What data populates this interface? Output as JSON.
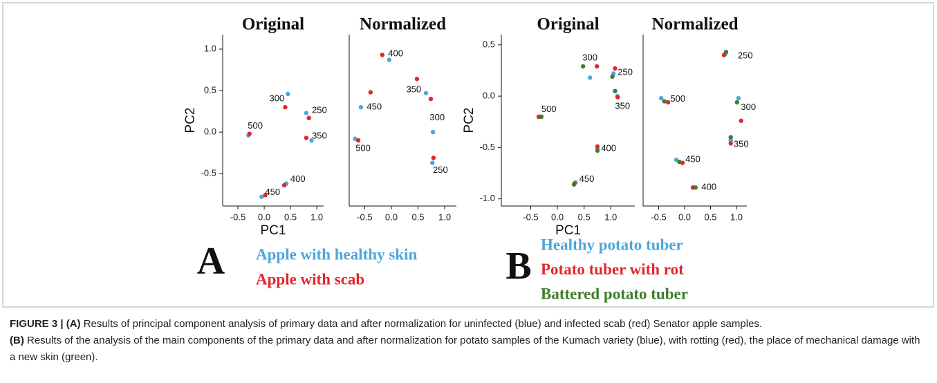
{
  "chart_data": [
    {
      "type": "scatter",
      "title": "Original",
      "xlabel": "PC1",
      "ylabel": "PC2",
      "xlim": [
        -0.79,
        1.13
      ],
      "ylim": [
        -0.89,
        1.175
      ],
      "xticks": [
        -0.5,
        {
          "value": 0,
          "label": "0.0"
        },
        0.5,
        {
          "value": 1,
          "label": "1.0"
        }
      ],
      "yticks": [
        -0.5,
        {
          "value": 0,
          "label": "0.0"
        },
        0.5,
        {
          "value": 1,
          "label": "1.0"
        }
      ],
      "series": [
        {
          "name": "Apple with healthy skin",
          "color": "#4ea6dc",
          "x": [
            0.8,
            0.45,
            0.9,
            0.42,
            -0.05,
            -0.3
          ],
          "y": [
            0.23,
            0.46,
            -0.1,
            -0.62,
            -0.78,
            -0.04
          ]
        },
        {
          "name": "Apple with scab",
          "color": "#e3262b",
          "x": [
            0.85,
            0.4,
            0.8,
            0.38,
            0.02,
            -0.28
          ],
          "y": [
            0.17,
            0.3,
            -0.07,
            -0.64,
            -0.76,
            -0.02
          ]
        }
      ],
      "annotations": [
        {
          "text": "250",
          "x": 1.05,
          "y": 0.26
        },
        {
          "text": "300",
          "x": 0.24,
          "y": 0.4
        },
        {
          "text": "350",
          "x": 1.05,
          "y": -0.05
        },
        {
          "text": "400",
          "x": 0.64,
          "y": -0.57
        },
        {
          "text": "450",
          "x": 0.16,
          "y": -0.73
        },
        {
          "text": "500",
          "x": -0.17,
          "y": 0.07
        }
      ]
    },
    {
      "type": "scatter",
      "title": "Normalized",
      "xlim": [
        -0.79,
        1.22
      ],
      "ylim": [
        -0.89,
        1.175
      ],
      "xticks": [
        -0.5,
        {
          "value": 0,
          "label": "0.0"
        },
        0.5,
        {
          "value": 1,
          "label": "1.0"
        }
      ],
      "series": [
        {
          "color": "#4ea6dc",
          "x": [
            0.77,
            0.78,
            0.65,
            -0.04,
            -0.57,
            -0.68
          ],
          "y": [
            -0.37,
            0.0,
            0.47,
            0.87,
            0.3,
            -0.08
          ]
        },
        {
          "color": "#e3262b",
          "x": [
            0.79,
            0.74,
            0.48,
            -0.17,
            -0.39,
            -0.62
          ],
          "y": [
            -0.31,
            0.4,
            0.64,
            0.93,
            0.48,
            -0.1
          ]
        }
      ],
      "annotations": [
        {
          "text": "250",
          "x": 0.92,
          "y": -0.46
        },
        {
          "text": "300",
          "x": 0.86,
          "y": 0.17
        },
        {
          "text": "350",
          "x": 0.42,
          "y": 0.51
        },
        {
          "text": "400",
          "x": 0.08,
          "y": 0.94
        },
        {
          "text": "450",
          "x": -0.32,
          "y": 0.3
        },
        {
          "text": "500",
          "x": -0.53,
          "y": -0.2
        }
      ]
    },
    {
      "type": "scatter",
      "title": "Original",
      "xlabel": "PC1",
      "ylabel": "PC2",
      "xlim": [
        -1.05,
        1.45
      ],
      "ylim": [
        -1.07,
        0.6
      ],
      "xticks": [
        -0.5,
        {
          "value": 0,
          "label": "0.0"
        },
        0.5,
        {
          "value": 1,
          "label": "1.0"
        }
      ],
      "yticks": [
        {
          "value": -1,
          "label": "-1.0"
        },
        -0.5,
        {
          "value": 0,
          "label": "0.0"
        },
        0.5
      ],
      "series": [
        {
          "name": "Healthy potato tuber",
          "color": "#4ea6dc",
          "x": [
            1.05,
            0.61,
            1.12,
            0.75,
            0.34,
            -0.33
          ],
          "y": [
            0.22,
            0.18,
            0.0,
            -0.51,
            -0.84,
            -0.2
          ]
        },
        {
          "name": "Potato tuber with rot",
          "color": "#e3262b",
          "x": [
            1.08,
            0.74,
            1.13,
            0.75,
            0.32,
            -0.35
          ],
          "y": [
            0.27,
            0.29,
            -0.01,
            -0.49,
            -0.85,
            -0.2
          ]
        },
        {
          "name": "Battered potato tuber",
          "color": "#3f7d2c",
          "x": [
            1.03,
            0.48,
            1.08,
            0.75,
            0.31,
            -0.3
          ],
          "y": [
            0.19,
            0.29,
            0.05,
            -0.53,
            -0.86,
            -0.2
          ]
        }
      ],
      "annotations": [
        {
          "text": "250",
          "x": 1.27,
          "y": 0.23
        },
        {
          "text": "300",
          "x": 0.61,
          "y": 0.37
        },
        {
          "text": "350",
          "x": 1.22,
          "y": -0.1
        },
        {
          "text": "400",
          "x": 0.96,
          "y": -0.51
        },
        {
          "text": "450",
          "x": 0.55,
          "y": -0.81
        },
        {
          "text": "500",
          "x": -0.16,
          "y": -0.13
        }
      ]
    },
    {
      "type": "scatter",
      "title": "Normalized",
      "xlim": [
        -0.8,
        1.2
      ],
      "ylim": [
        -1.07,
        0.6
      ],
      "xticks": [
        -0.5,
        {
          "value": 0,
          "label": "0.0"
        },
        0.5,
        {
          "value": 1,
          "label": "1.0"
        }
      ],
      "series": [
        {
          "color": "#4ea6dc",
          "x": [
            0.78,
            1.04,
            0.89,
            0.18,
            -0.16,
            -0.45
          ],
          "y": [
            0.41,
            -0.02,
            -0.43,
            -0.89,
            -0.62,
            -0.02
          ]
        },
        {
          "color": "#e3262b",
          "x": [
            0.76,
            1.09,
            0.89,
            0.16,
            -0.04,
            -0.32
          ],
          "y": [
            0.4,
            -0.24,
            -0.46,
            -0.89,
            -0.65,
            -0.06
          ]
        },
        {
          "color": "#3f7d2c",
          "x": [
            0.8,
            1.01,
            0.89,
            0.21,
            -0.1,
            -0.39
          ],
          "y": [
            0.43,
            -0.06,
            -0.4,
            -0.89,
            -0.64,
            -0.05
          ]
        }
      ],
      "annotations": [
        {
          "text": "250",
          "x": 1.17,
          "y": 0.39
        },
        {
          "text": "300",
          "x": 1.23,
          "y": -0.11
        },
        {
          "text": "350",
          "x": 1.09,
          "y": -0.47
        },
        {
          "text": "400",
          "x": 0.47,
          "y": -0.89
        },
        {
          "text": "450",
          "x": 0.16,
          "y": -0.62
        },
        {
          "text": "500",
          "x": -0.13,
          "y": -0.03
        }
      ]
    }
  ],
  "panels": [
    {
      "letter": "A"
    },
    {
      "letter": "B"
    }
  ],
  "caption": {
    "label": "FIGURE 3 |",
    "part_a_label": "(A)",
    "part_a": "Results of principal component analysis of primary data and after normalization for uninfected (blue) and infected scab (red) Senator apple samples.",
    "part_b_label": "(B)",
    "part_b": "Results of the analysis of the main components of the primary data and after normalization for potato samples of the Kumach variety (blue), with rotting (red), the place of mechanical damage with a new skin (green)."
  }
}
